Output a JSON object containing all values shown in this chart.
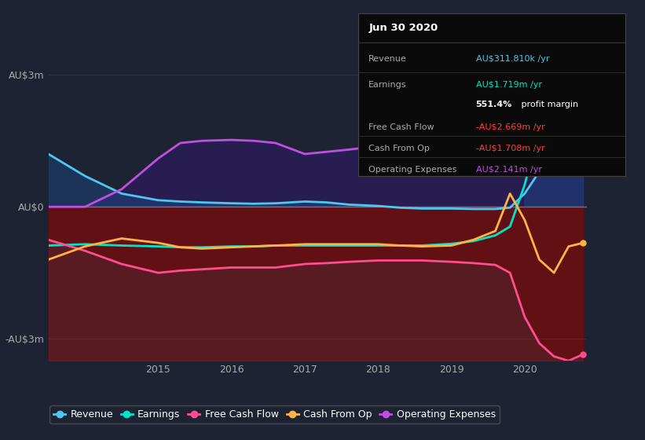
{
  "bg_color": "#1e2333",
  "plot_bg_color": "#1e2333",
  "ylim": [
    -3.5,
    3.5
  ],
  "yticks": [
    -3,
    0,
    3
  ],
  "ytick_labels": [
    "-AU$3m",
    "AU$0",
    "AU$3m"
  ],
  "xlim_start": 2013.5,
  "xlim_end": 2020.85,
  "xticks": [
    2015,
    2016,
    2017,
    2018,
    2019,
    2020
  ],
  "xtick_labels": [
    "2015",
    "2016",
    "2017",
    "2018",
    "2019",
    "2020"
  ],
  "legend_labels": [
    "Revenue",
    "Earnings",
    "Free Cash Flow",
    "Cash From Op",
    "Operating Expenses"
  ],
  "legend_colors": [
    "#4dc8f0",
    "#00e5c8",
    "#ff4d8f",
    "#ffb347",
    "#c050e0"
  ],
  "info_box": {
    "title": "Jun 30 2020",
    "rows": [
      {
        "label": "Revenue",
        "value": "AU$311.810k /yr",
        "value_color": "#4dc8f0"
      },
      {
        "label": "Earnings",
        "value": "AU$1.719m /yr",
        "value_color": "#00e5c8"
      },
      {
        "label": "",
        "value": "551.4% profit margin",
        "value_color": "#ffffff"
      },
      {
        "label": "Free Cash Flow",
        "value": "-AU$2.669m /yr",
        "value_color": "#ff4040"
      },
      {
        "label": "Cash From Op",
        "value": "-AU$1.708m /yr",
        "value_color": "#ff4040"
      },
      {
        "label": "Operating Expenses",
        "value": "AU$2.141m /yr",
        "value_color": "#c050e0"
      }
    ]
  },
  "x": [
    2013.5,
    2014.0,
    2014.5,
    2015.0,
    2015.3,
    2015.6,
    2016.0,
    2016.3,
    2016.6,
    2017.0,
    2017.3,
    2017.6,
    2018.0,
    2018.3,
    2018.6,
    2019.0,
    2019.3,
    2019.6,
    2019.8,
    2020.0,
    2020.2,
    2020.4,
    2020.6,
    2020.8
  ],
  "revenue": [
    1.2,
    0.7,
    0.3,
    0.15,
    0.12,
    0.1,
    0.08,
    0.07,
    0.08,
    0.12,
    0.1,
    0.05,
    0.02,
    -0.02,
    -0.04,
    -0.04,
    -0.05,
    -0.05,
    -0.02,
    0.3,
    0.8,
    1.8,
    2.8,
    3.1
  ],
  "earnings": [
    -0.88,
    -0.85,
    -0.88,
    -0.9,
    -0.92,
    -0.92,
    -0.9,
    -0.9,
    -0.88,
    -0.88,
    -0.88,
    -0.88,
    -0.88,
    -0.88,
    -0.88,
    -0.84,
    -0.78,
    -0.65,
    -0.45,
    0.5,
    1.8,
    3.0,
    3.5,
    3.62
  ],
  "free_cash_flow": [
    -0.75,
    -1.0,
    -1.3,
    -1.5,
    -1.45,
    -1.42,
    -1.38,
    -1.38,
    -1.38,
    -1.3,
    -1.28,
    -1.25,
    -1.22,
    -1.22,
    -1.22,
    -1.25,
    -1.28,
    -1.32,
    -1.5,
    -2.5,
    -3.1,
    -3.4,
    -3.5,
    -3.35
  ],
  "cash_from_op": [
    -1.2,
    -0.9,
    -0.72,
    -0.82,
    -0.92,
    -0.95,
    -0.92,
    -0.9,
    -0.88,
    -0.85,
    -0.85,
    -0.85,
    -0.85,
    -0.88,
    -0.9,
    -0.88,
    -0.75,
    -0.55,
    0.3,
    -0.3,
    -1.2,
    -1.5,
    -0.9,
    -0.82
  ],
  "operating_expenses": [
    0.0,
    0.0,
    0.4,
    1.1,
    1.45,
    1.5,
    1.52,
    1.5,
    1.45,
    1.2,
    1.25,
    1.3,
    1.38,
    1.35,
    1.3,
    1.2,
    1.22,
    1.22,
    1.25,
    1.5,
    2.2,
    3.0,
    3.6,
    3.82
  ]
}
